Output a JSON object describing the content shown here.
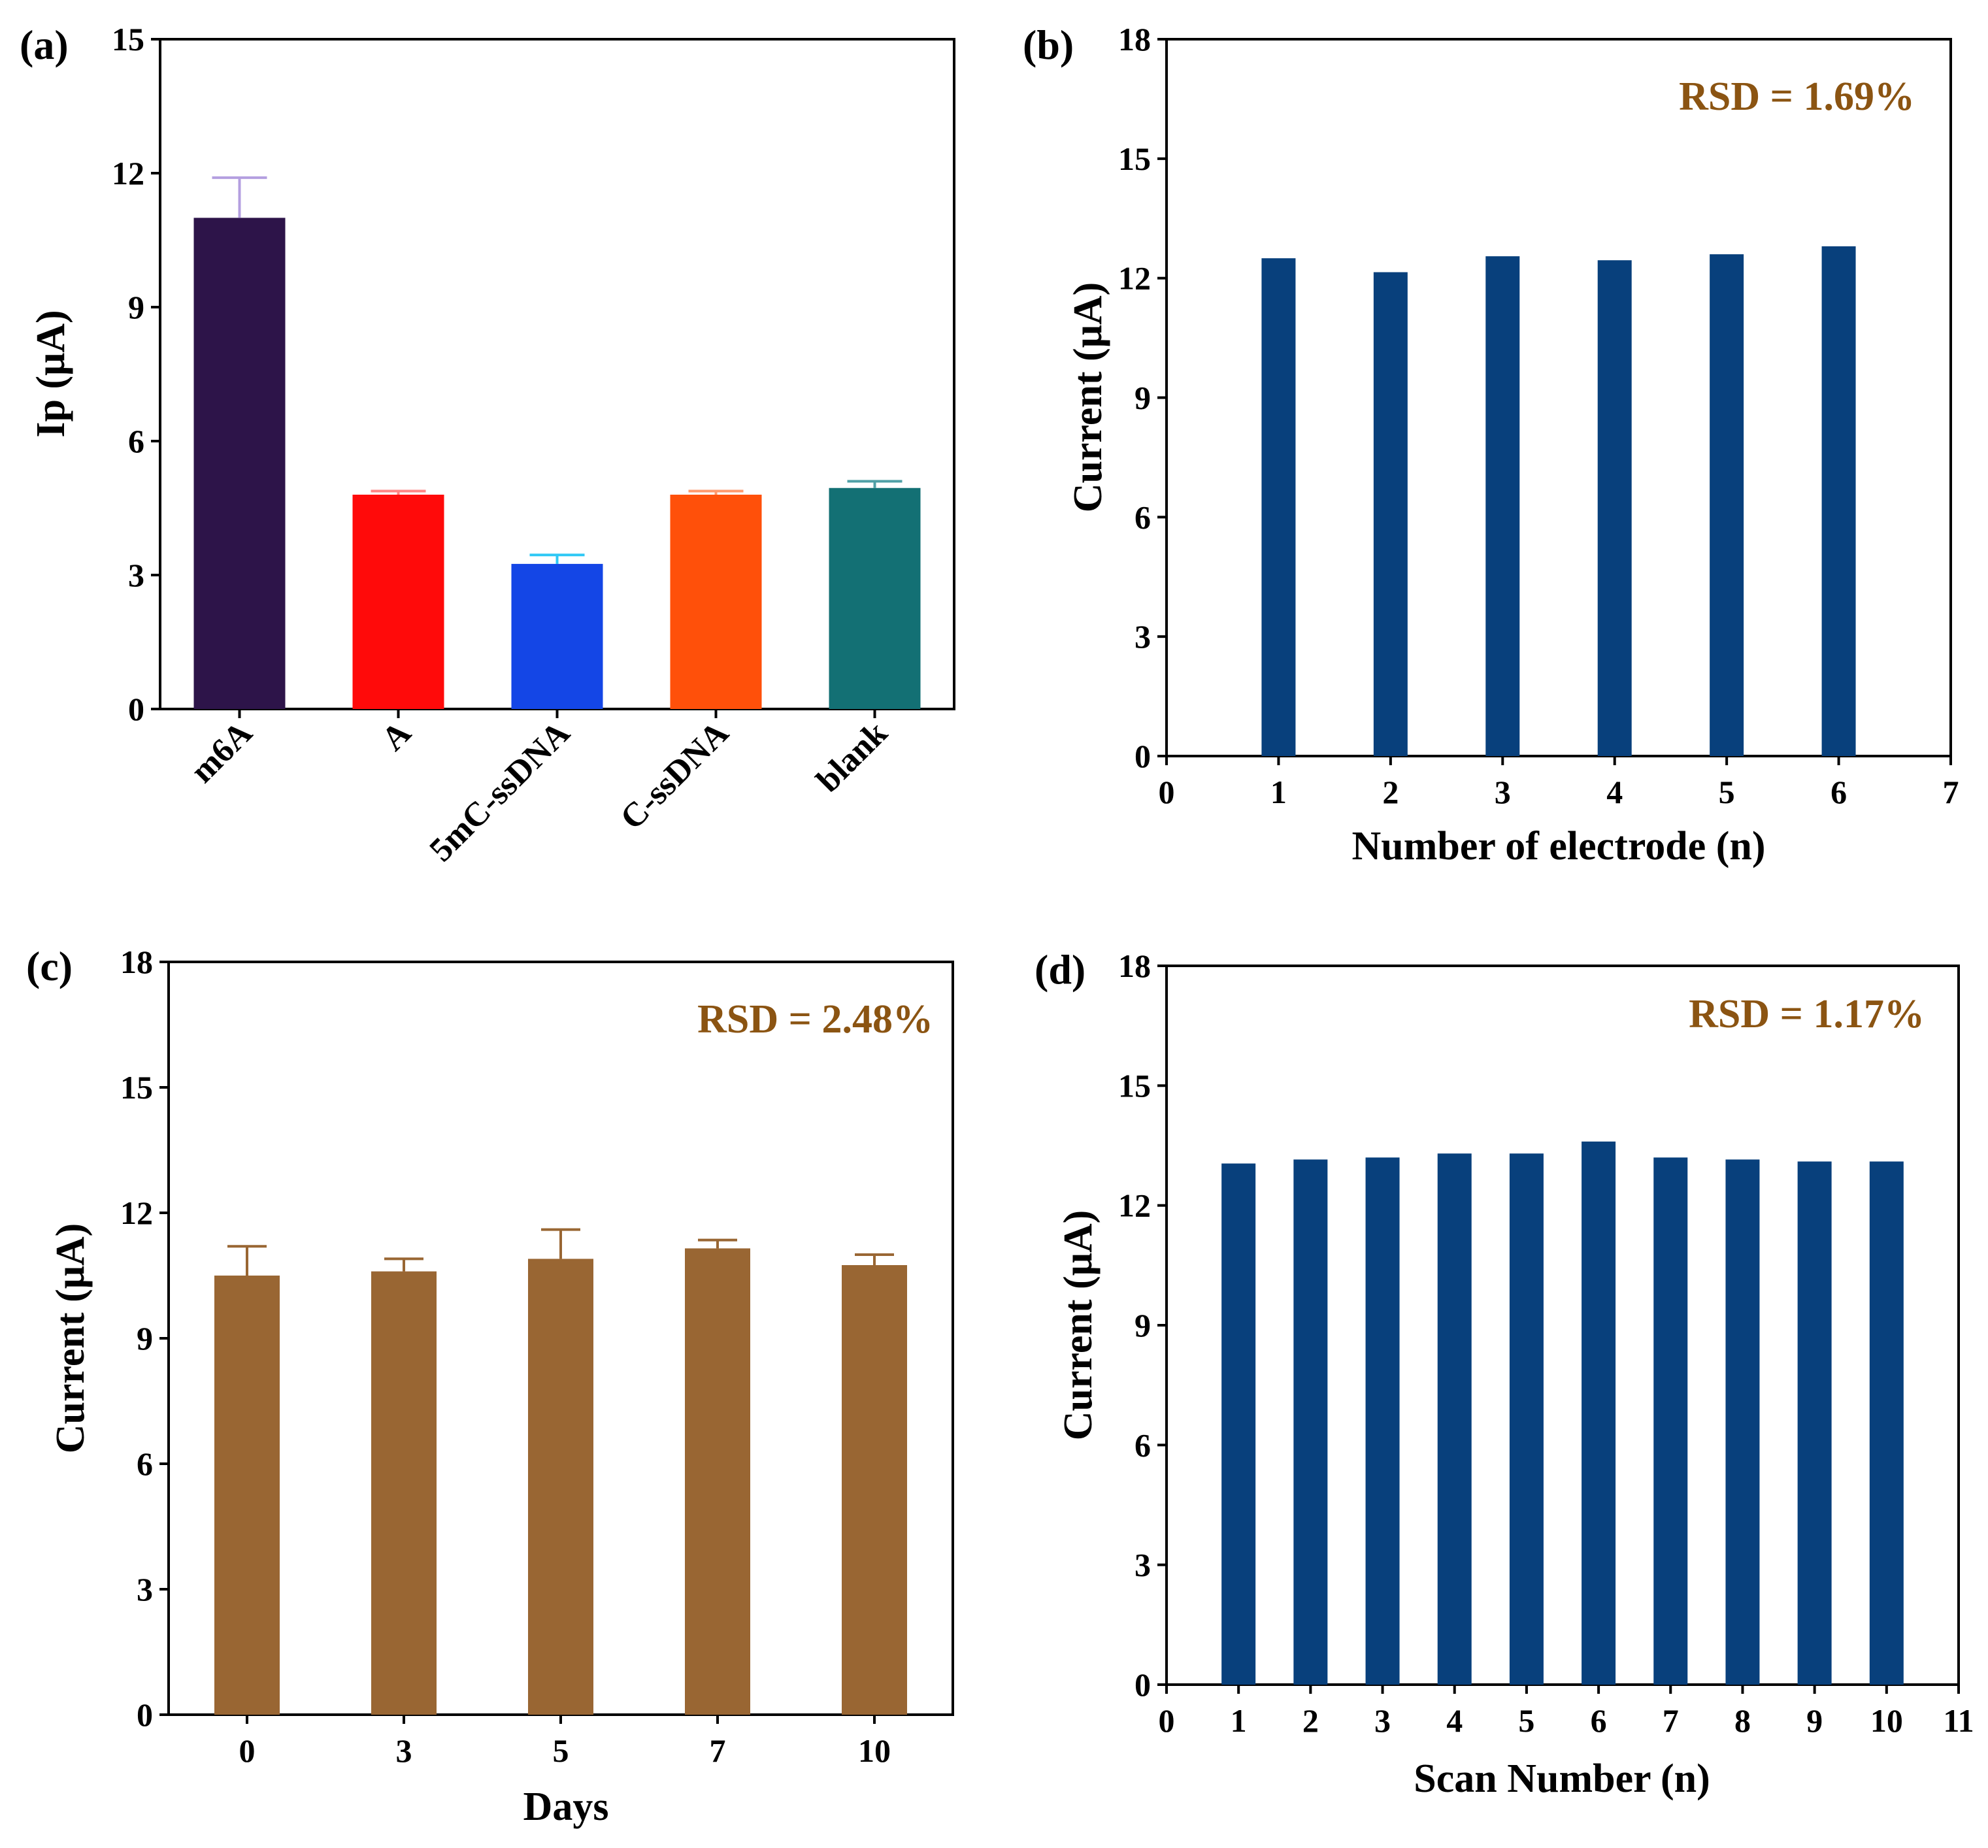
{
  "chart_data": [
    {
      "id": "a",
      "type": "bar",
      "panel_label": "(a)",
      "title": "",
      "xlabel": "",
      "ylabel": "Ip (μA)",
      "ylim": [
        0,
        15
      ],
      "yticks": [
        "0",
        "3",
        "6",
        "9",
        "12",
        "15"
      ],
      "categories": [
        "m6A",
        "A",
        "5mC-ssDNA",
        "C-ssDNA",
        "blank"
      ],
      "values": [
        11.0,
        4.8,
        3.25,
        4.8,
        4.95
      ],
      "errors": [
        0.9,
        0.08,
        0.2,
        0.08,
        0.15
      ],
      "colors": [
        "#2d1449",
        "#ff0a0a",
        "#1446e6",
        "#ff500a",
        "#137074"
      ],
      "error_colors": [
        "#b49fe0",
        "#ff8585",
        "#2ec8f5",
        "#ff9a6e",
        "#4fa0a6"
      ],
      "annotation": ""
    },
    {
      "id": "b",
      "type": "bar",
      "panel_label": "(b)",
      "title": "",
      "xlabel": "Number of electrode (n)",
      "ylabel": "Current (μA)",
      "ylim": [
        0,
        18
      ],
      "xlim": [
        0,
        7
      ],
      "yticks": [
        "0",
        "3",
        "6",
        "9",
        "12",
        "15",
        "18"
      ],
      "xticks": [
        "0",
        "1",
        "2",
        "3",
        "4",
        "5",
        "6",
        "7"
      ],
      "x": [
        1,
        2,
        3,
        4,
        5,
        6
      ],
      "values": [
        12.5,
        12.15,
        12.55,
        12.45,
        12.6,
        12.8
      ],
      "color": "#08407c",
      "annotation": "RSD = 1.69%",
      "annotation_color": "#8b5412"
    },
    {
      "id": "c",
      "type": "bar",
      "panel_label": "(c)",
      "title": "",
      "xlabel": "Days",
      "ylabel": "Current (μA)",
      "ylim": [
        0,
        18
      ],
      "yticks": [
        "0",
        "3",
        "6",
        "9",
        "12",
        "15",
        "18"
      ],
      "categories": [
        "0",
        "3",
        "5",
        "7",
        "10"
      ],
      "values": [
        10.5,
        10.6,
        10.9,
        11.15,
        10.75
      ],
      "errors": [
        0.7,
        0.3,
        0.7,
        0.2,
        0.25
      ],
      "color": "#996633",
      "error_color": "#996633",
      "annotation": "RSD = 2.48%",
      "annotation_color": "#8b5412"
    },
    {
      "id": "d",
      "type": "bar",
      "panel_label": "(d)",
      "title": "",
      "xlabel": "Scan Number (n)",
      "ylabel": "Current (μA)",
      "ylim": [
        0,
        18
      ],
      "xlim": [
        0,
        11
      ],
      "yticks": [
        "0",
        "3",
        "6",
        "9",
        "12",
        "15",
        "18"
      ],
      "xticks": [
        "0",
        "1",
        "2",
        "3",
        "4",
        "5",
        "6",
        "7",
        "8",
        "9",
        "10",
        "11"
      ],
      "x": [
        1,
        2,
        3,
        4,
        5,
        6,
        7,
        8,
        9,
        10
      ],
      "values": [
        13.05,
        13.15,
        13.2,
        13.3,
        13.3,
        13.6,
        13.2,
        13.15,
        13.1,
        13.1
      ],
      "color": "#08407c",
      "annotation": "RSD = 1.17%",
      "annotation_color": "#8b5412"
    }
  ]
}
